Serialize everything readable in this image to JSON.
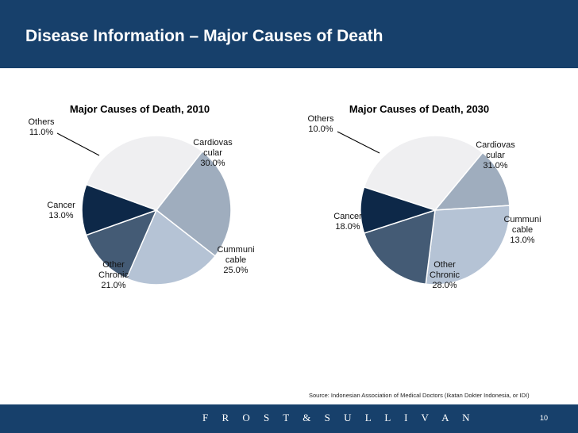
{
  "header": {
    "title": "Disease Information – Major Causes of Death"
  },
  "chart_data": [
    {
      "type": "pie",
      "title": "Major Causes of Death, 2010",
      "slices": [
        {
          "label": [
            "Cardiovas",
            "cular"
          ],
          "pct_text": "30.0%",
          "value": 30.0,
          "color": "#efeff1"
        },
        {
          "label": [
            "Cummuni",
            "cable"
          ],
          "pct_text": "25.0%",
          "value": 25.0,
          "color": "#9fadbe"
        },
        {
          "label": [
            "Other",
            "Chronic"
          ],
          "pct_text": "21.0%",
          "value": 21.0,
          "color": "#b5c3d5"
        },
        {
          "label": [
            "Cancer"
          ],
          "pct_text": "13.0%",
          "value": 13.0,
          "color": "#445b75"
        },
        {
          "label": [
            "Others"
          ],
          "pct_text": "11.0%",
          "value": 11.0,
          "color": "#0d2848"
        }
      ]
    },
    {
      "type": "pie",
      "title": "Major Causes of Death, 2030",
      "slices": [
        {
          "label": [
            "Cardiovas",
            "cular"
          ],
          "pct_text": "31.0%",
          "value": 31.0,
          "color": "#efeff1"
        },
        {
          "label": [
            "Cummuni",
            "cable"
          ],
          "pct_text": "13.0%",
          "value": 13.0,
          "color": "#9fadbe"
        },
        {
          "label": [
            "Other",
            "Chronic"
          ],
          "pct_text": "28.0%",
          "value": 28.0,
          "color": "#b5c3d5"
        },
        {
          "label": [
            "Cancer"
          ],
          "pct_text": "18.0%",
          "value": 18.0,
          "color": "#445b75"
        },
        {
          "label": [
            "Others"
          ],
          "pct_text": "10.0%",
          "value": 10.0,
          "color": "#0d2848"
        }
      ]
    }
  ],
  "source": "Source: Indonesian Association of Medical Doctors (Ikatan Dokter Indonesia, or IDI)",
  "footer": {
    "brand": "F R O S T  &  S U L L I V A N",
    "page": "10"
  },
  "colors": {
    "header_bg": "#17406b",
    "footer_bg": "#17406b"
  }
}
